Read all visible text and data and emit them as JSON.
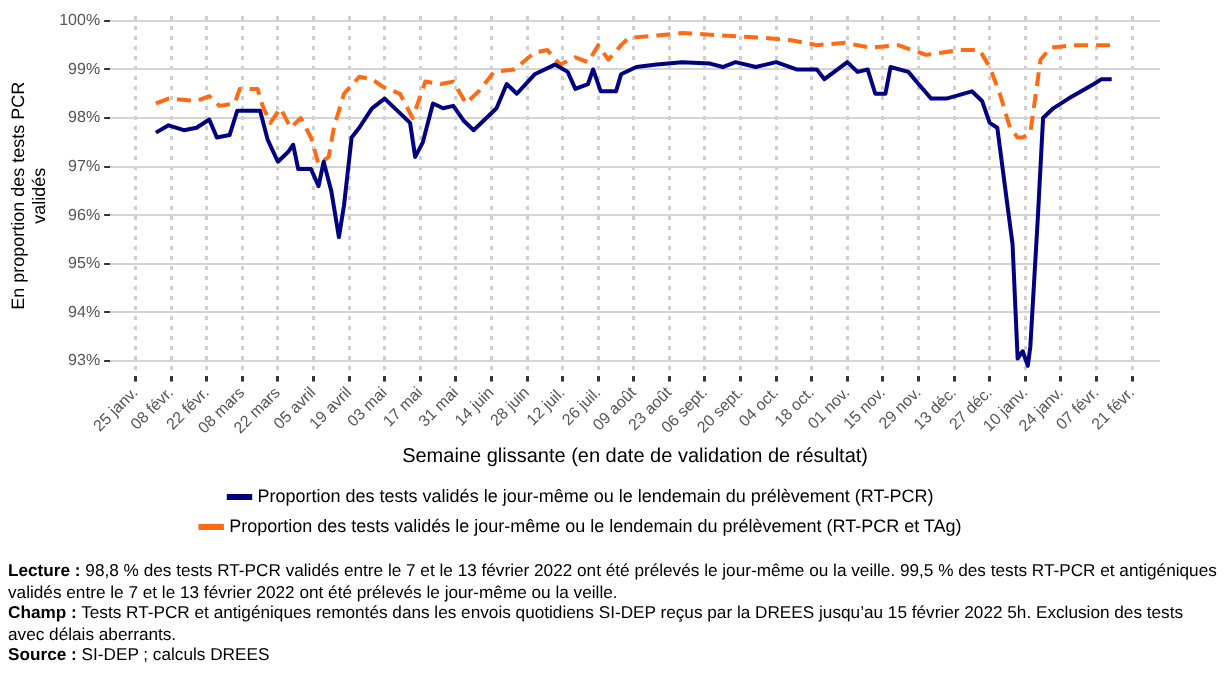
{
  "chart_data": {
    "type": "line",
    "xlabel": "Semaine glissante (en date de validation de résultat)",
    "ylabel": "En proportion des tests PCR validés",
    "xlim": [
      "2021-01-15",
      "2022-03-04"
    ],
    "xticks": [
      {
        "value": "2021-01-25",
        "label": "25 janv."
      },
      {
        "value": "2021-02-08",
        "label": "08 févr."
      },
      {
        "value": "2021-02-22",
        "label": "22 févr."
      },
      {
        "value": "2021-03-08",
        "label": "08 mars"
      },
      {
        "value": "2021-03-22",
        "label": "22 mars"
      },
      {
        "value": "2021-04-05",
        "label": "05 avril"
      },
      {
        "value": "2021-04-19",
        "label": "19 avril"
      },
      {
        "value": "2021-05-03",
        "label": "03 mai"
      },
      {
        "value": "2021-05-17",
        "label": "17 mai"
      },
      {
        "value": "2021-05-31",
        "label": "31 mai"
      },
      {
        "value": "2021-06-14",
        "label": "14 juin"
      },
      {
        "value": "2021-06-28",
        "label": "28 juin"
      },
      {
        "value": "2021-07-12",
        "label": "12 juil."
      },
      {
        "value": "2021-07-26",
        "label": "26 juil."
      },
      {
        "value": "2021-08-09",
        "label": "09 août"
      },
      {
        "value": "2021-08-23",
        "label": "23 août"
      },
      {
        "value": "2021-09-06",
        "label": "06 sept."
      },
      {
        "value": "2021-09-20",
        "label": "20 sept."
      },
      {
        "value": "2021-10-04",
        "label": "04 oct."
      },
      {
        "value": "2021-10-18",
        "label": "18 oct."
      },
      {
        "value": "2021-11-01",
        "label": "01 nov."
      },
      {
        "value": "2021-11-15",
        "label": "15 nov."
      },
      {
        "value": "2021-11-29",
        "label": "29 nov."
      },
      {
        "value": "2021-12-13",
        "label": "13 déc."
      },
      {
        "value": "2021-12-27",
        "label": "27 déc."
      },
      {
        "value": "2022-01-10",
        "label": "10 janv."
      },
      {
        "value": "2022-01-24",
        "label": "24 janv."
      },
      {
        "value": "2022-02-07",
        "label": "07 févr."
      },
      {
        "value": "2022-02-21",
        "label": "21 févr."
      }
    ],
    "ylim": [
      92.7,
      100.1
    ],
    "yticks": [
      {
        "value": 93,
        "label": "93%"
      },
      {
        "value": 94,
        "label": "94%"
      },
      {
        "value": 95,
        "label": "95%"
      },
      {
        "value": 96,
        "label": "96%"
      },
      {
        "value": 97,
        "label": "97%"
      },
      {
        "value": 98,
        "label": "98%"
      },
      {
        "value": 99,
        "label": "99%"
      },
      {
        "value": 100,
        "label": "100%"
      }
    ],
    "grid": true,
    "legend": "bottom",
    "marker": "none",
    "series": [
      {
        "name": "Proportion des tests validés le jour-même ou le lendemain du prélèvement (RT-PCR)",
        "color": "#000080",
        "line_style": "solid",
        "x": [
          "2021-02-02",
          "2021-02-07",
          "2021-02-13",
          "2021-02-18",
          "2021-02-23",
          "2021-02-26",
          "2021-03-03",
          "2021-03-06",
          "2021-03-15",
          "2021-03-18",
          "2021-03-22",
          "2021-03-26",
          "2021-03-28",
          "2021-03-30",
          "2021-04-04",
          "2021-04-07",
          "2021-04-09",
          "2021-04-12",
          "2021-04-15",
          "2021-04-17",
          "2021-04-20",
          "2021-04-23",
          "2021-04-28",
          "2021-05-03",
          "2021-05-09",
          "2021-05-13",
          "2021-05-15",
          "2021-05-18",
          "2021-05-22",
          "2021-05-26",
          "2021-05-30",
          "2021-06-03",
          "2021-06-07",
          "2021-06-12",
          "2021-06-16",
          "2021-06-20",
          "2021-06-24",
          "2021-07-01",
          "2021-07-09",
          "2021-07-14",
          "2021-07-17",
          "2021-07-22",
          "2021-07-24",
          "2021-07-27",
          "2021-08-02",
          "2021-08-04",
          "2021-08-10",
          "2021-08-18",
          "2021-08-28",
          "2021-09-08",
          "2021-09-13",
          "2021-09-18",
          "2021-09-26",
          "2021-10-04",
          "2021-10-12",
          "2021-10-20",
          "2021-10-23",
          "2021-11-01",
          "2021-11-05",
          "2021-11-09",
          "2021-11-12",
          "2021-11-16",
          "2021-11-18",
          "2021-11-25",
          "2021-11-29",
          "2021-12-04",
          "2021-12-10",
          "2021-12-20",
          "2021-12-24",
          "2021-12-27",
          "2021-12-30",
          "2022-01-03",
          "2022-01-05",
          "2022-01-07",
          "2022-01-09",
          "2022-01-11",
          "2022-01-12",
          "2022-01-15",
          "2022-01-17",
          "2022-01-21",
          "2022-01-27",
          "2022-02-01",
          "2022-02-06",
          "2022-02-09",
          "2022-02-13"
        ],
        "values": [
          97.7,
          97.85,
          97.75,
          97.8,
          97.97,
          97.6,
          97.65,
          98.15,
          98.15,
          97.55,
          97.1,
          97.3,
          97.45,
          96.95,
          96.95,
          96.6,
          97.1,
          96.5,
          95.55,
          96.2,
          97.6,
          97.8,
          98.2,
          98.4,
          98.1,
          97.9,
          97.2,
          97.5,
          98.3,
          98.2,
          98.25,
          97.95,
          97.75,
          98.0,
          98.2,
          98.7,
          98.5,
          98.9,
          99.1,
          98.95,
          98.6,
          98.7,
          99.0,
          98.55,
          98.55,
          98.9,
          99.05,
          99.1,
          99.15,
          99.12,
          99.05,
          99.15,
          99.05,
          99.15,
          99.0,
          99.0,
          98.8,
          99.15,
          98.95,
          99.0,
          98.5,
          98.5,
          99.05,
          98.95,
          98.7,
          98.4,
          98.4,
          98.55,
          98.35,
          97.9,
          97.8,
          96.2,
          95.4,
          93.05,
          93.2,
          92.9,
          93.3,
          96.0,
          98.0,
          98.2,
          98.4,
          98.55,
          98.7,
          98.8,
          98.8
        ]
      },
      {
        "name": "Proportion des tests validés le jour-même ou le lendemain du prélèvement (RT-PCR et TAg)",
        "color": "#ff6a13",
        "line_style": "dashed",
        "x": [
          "2021-02-02",
          "2021-02-07",
          "2021-02-18",
          "2021-02-23",
          "2021-02-27",
          "2021-03-05",
          "2021-03-07",
          "2021-03-14",
          "2021-03-16",
          "2021-03-19",
          "2021-03-23",
          "2021-03-27",
          "2021-03-31",
          "2021-04-04",
          "2021-04-07",
          "2021-04-11",
          "2021-04-13",
          "2021-04-17",
          "2021-04-23",
          "2021-04-28",
          "2021-05-02",
          "2021-05-09",
          "2021-05-14",
          "2021-05-19",
          "2021-05-25",
          "2021-05-30",
          "2021-06-04",
          "2021-06-09",
          "2021-06-15",
          "2021-06-23",
          "2021-07-01",
          "2021-07-06",
          "2021-07-11",
          "2021-07-17",
          "2021-07-22",
          "2021-07-26",
          "2021-07-30",
          "2021-08-04",
          "2021-08-07",
          "2021-08-18",
          "2021-08-28",
          "2021-09-13",
          "2021-09-29",
          "2021-10-10",
          "2021-10-20",
          "2021-10-31",
          "2021-11-10",
          "2021-11-21",
          "2021-12-02",
          "2021-12-15",
          "2021-12-23",
          "2021-12-27",
          "2021-12-31",
          "2022-01-04",
          "2022-01-07",
          "2022-01-09",
          "2022-01-12",
          "2022-01-16",
          "2022-01-20",
          "2022-01-29",
          "2022-02-13"
        ],
        "values": [
          98.3,
          98.4,
          98.35,
          98.45,
          98.25,
          98.3,
          98.6,
          98.6,
          98.25,
          97.9,
          98.2,
          97.8,
          98.0,
          97.6,
          97.05,
          97.2,
          97.8,
          98.5,
          98.85,
          98.8,
          98.65,
          98.5,
          98.0,
          98.75,
          98.7,
          98.75,
          98.3,
          98.55,
          98.95,
          99.0,
          99.35,
          99.4,
          99.1,
          99.25,
          99.15,
          99.5,
          99.2,
          99.5,
          99.65,
          99.7,
          99.75,
          99.7,
          99.65,
          99.6,
          99.5,
          99.55,
          99.45,
          99.5,
          99.3,
          99.4,
          99.4,
          99.05,
          98.5,
          97.8,
          97.6,
          97.6,
          97.7,
          99.2,
          99.45,
          99.5,
          99.5
        ]
      }
    ],
    "annotations": [
      "Lecture : 98,8 % des tests RT-PCR validés entre le 7 et le 13 février 2022 ont été prélevés le jour-même ou la veille. 99,5 % des tests RT-PCR et antigéniques validés entre le 7 et le 13 février 2022 ont été prélevés le jour-même ou la veille.",
      "Champ : Tests RT-PCR et antigéniques remontés dans les envois quotidiens SI-DEP reçus par la DREES jusqu’au 15 février 2022 5h. Exclusion des tests avec délais aberrants.",
      "Source : SI-DEP ; calculs DREES"
    ]
  }
}
